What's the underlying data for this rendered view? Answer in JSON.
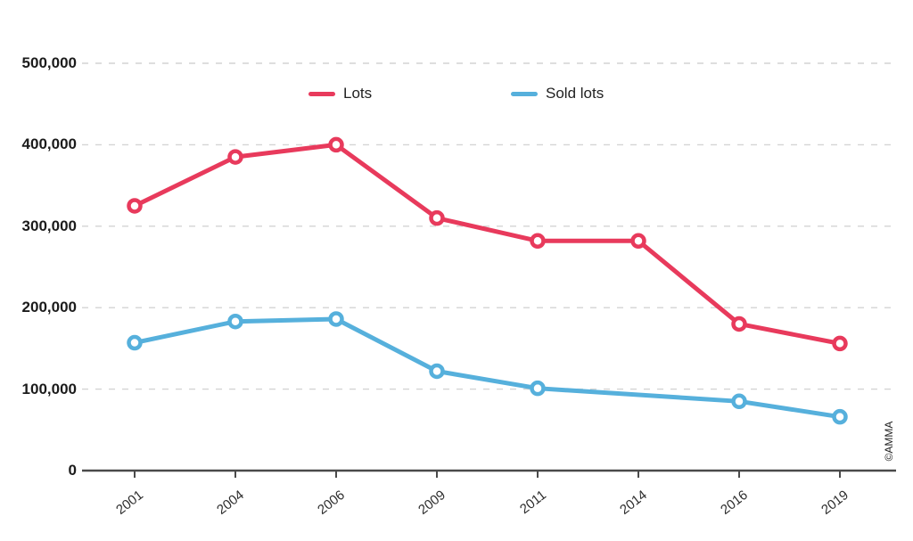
{
  "chart_data": {
    "type": "line",
    "categories": [
      "2001",
      "2004",
      "2006",
      "2009",
      "2011",
      "2014",
      "2016",
      "2019"
    ],
    "series": [
      {
        "name": "Lots",
        "color": "#e83a5c",
        "values": [
          325000,
          385000,
          400000,
          310000,
          282000,
          282000,
          180000,
          156000
        ]
      },
      {
        "name": "Sold lots",
        "color": "#56b0dc",
        "values": [
          157000,
          183000,
          186000,
          122000,
          101000,
          null,
          85000,
          66000
        ]
      }
    ],
    "yticks": [
      "0",
      "100,000",
      "200,000",
      "300,000",
      "400,000",
      "500,000"
    ],
    "ylim": [
      0,
      500000
    ],
    "grid": "horizontal-dashed",
    "legend_position": "top-center",
    "marker_style": "open-circle"
  },
  "footer": {
    "credit": "©AMMA"
  },
  "colors": {
    "gridline": "#d4d4d4",
    "axis": "#4a4a4a",
    "background": "#ffffff"
  }
}
